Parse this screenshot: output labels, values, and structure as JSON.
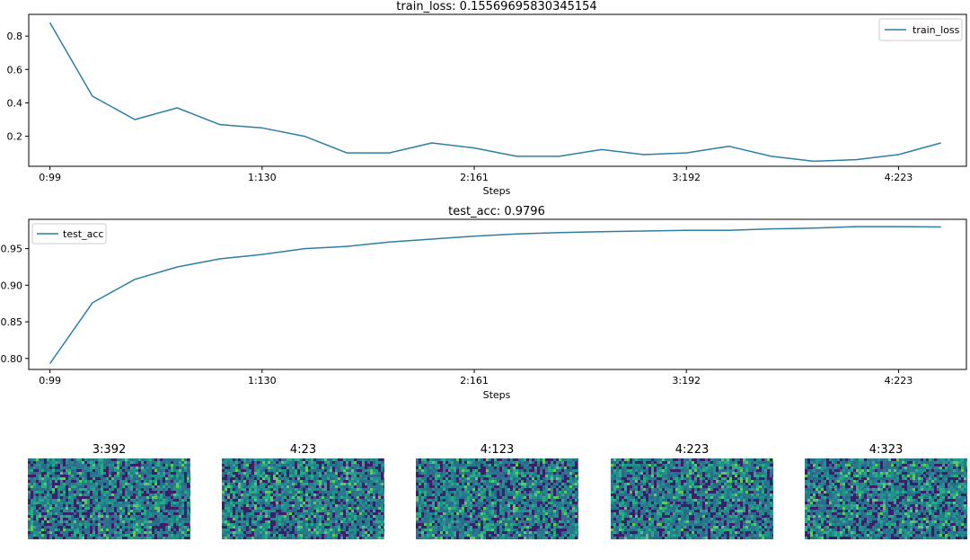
{
  "colors": {
    "series": "#2f7ea3",
    "heatmap_palette": [
      "#3b1f6b",
      "#2a788e",
      "#21918c",
      "#27ad81",
      "#5ec962",
      "#2b6a8d"
    ]
  },
  "chart_data": [
    {
      "type": "line",
      "title": "train_loss: 0.15569695830345154",
      "xlabel": "Steps",
      "ylabel": "",
      "x_ticks": [
        "0:99",
        "1:130",
        "2:161",
        "3:192",
        "4:223"
      ],
      "y_ticks": [
        "0.2",
        "0.4",
        "0.6",
        "0.8"
      ],
      "ylim": [
        0.02,
        0.93
      ],
      "xlim": [
        -0.5,
        21.6
      ],
      "legend": "top-right",
      "grid": false,
      "series": [
        {
          "name": "train_loss",
          "x": [
            0,
            1,
            2,
            3,
            4,
            5,
            6,
            7,
            8,
            9,
            10,
            11,
            12,
            13,
            14,
            15,
            16,
            17,
            18,
            19,
            20,
            21
          ],
          "values": [
            0.88,
            0.44,
            0.3,
            0.37,
            0.27,
            0.25,
            0.2,
            0.1,
            0.1,
            0.16,
            0.13,
            0.08,
            0.08,
            0.12,
            0.09,
            0.1,
            0.14,
            0.08,
            0.05,
            0.06,
            0.09,
            0.16
          ]
        }
      ]
    },
    {
      "type": "line",
      "title": "test_acc: 0.9796",
      "xlabel": "Steps",
      "ylabel": "",
      "x_ticks": [
        "0:99",
        "1:130",
        "2:161",
        "3:192",
        "4:223"
      ],
      "y_ticks": [
        "0.80",
        "0.85",
        "0.90",
        "0.95"
      ],
      "ylim": [
        0.785,
        0.99
      ],
      "xlim": [
        -0.5,
        21.6
      ],
      "legend": "top-left",
      "grid": false,
      "series": [
        {
          "name": "test_acc",
          "x": [
            0,
            1,
            2,
            3,
            4,
            5,
            6,
            7,
            8,
            9,
            10,
            11,
            12,
            13,
            14,
            15,
            16,
            17,
            18,
            19,
            20,
            21
          ],
          "values": [
            0.793,
            0.876,
            0.908,
            0.925,
            0.936,
            0.942,
            0.95,
            0.953,
            0.959,
            0.963,
            0.967,
            0.97,
            0.972,
            0.973,
            0.974,
            0.975,
            0.975,
            0.977,
            0.978,
            0.98,
            0.98,
            0.9796
          ]
        }
      ]
    },
    {
      "type": "heatmap",
      "titles": [
        "3:392",
        "4:23",
        "4:123",
        "4:223",
        "4:323"
      ]
    }
  ]
}
